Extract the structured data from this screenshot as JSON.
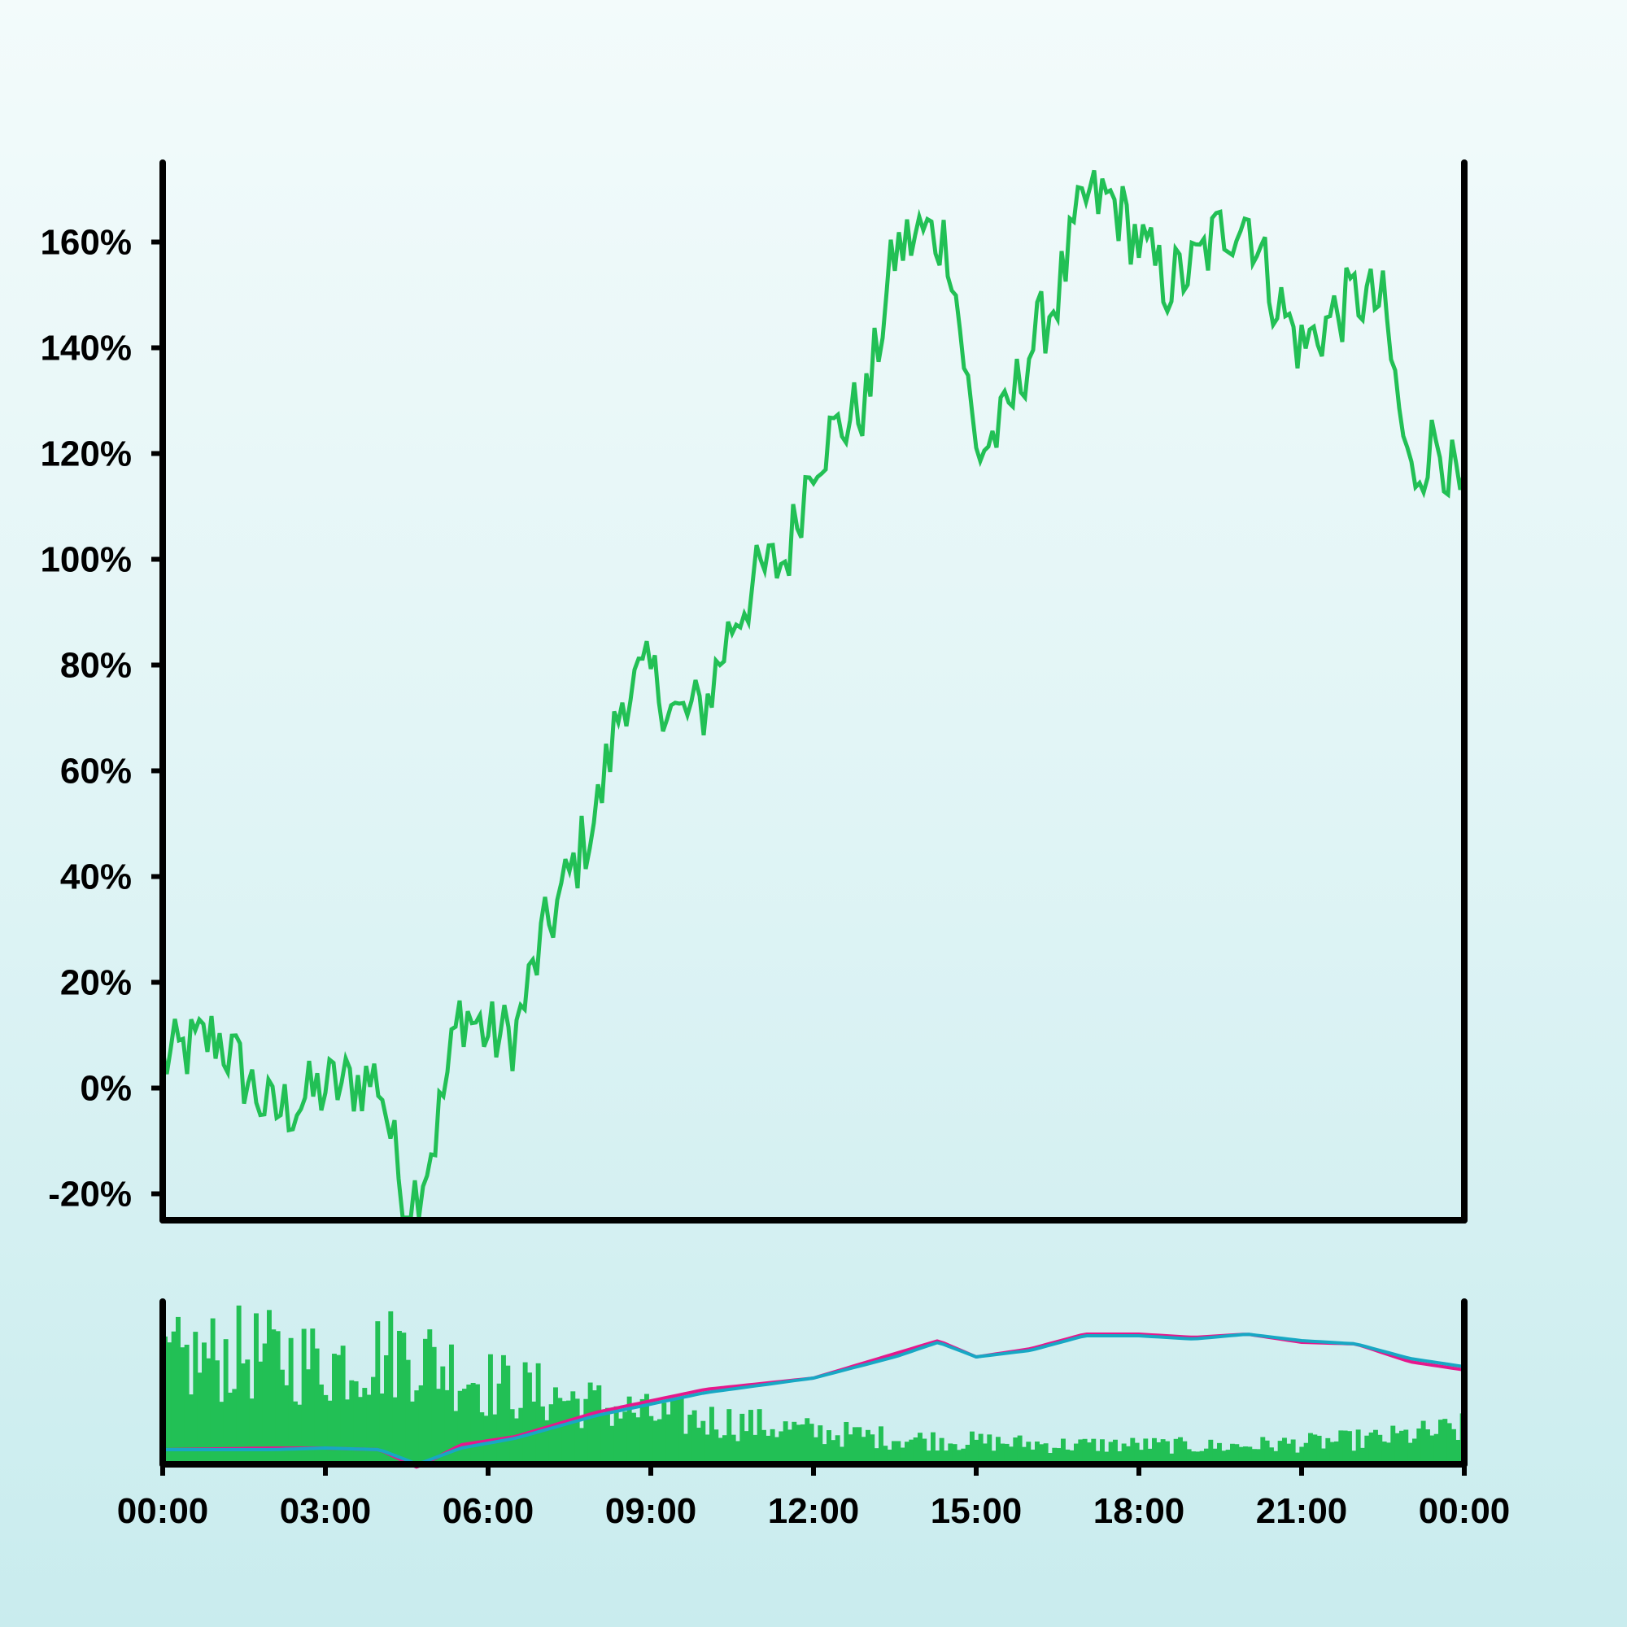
{
  "chart_data": [
    {
      "type": "line",
      "title": "",
      "xlabel": "",
      "ylabel": "",
      "ylim": [
        -25,
        175
      ],
      "y_tick_values": [
        -20,
        0,
        20,
        40,
        60,
        80,
        100,
        120,
        140,
        160
      ],
      "y_tick_labels": [
        "-20%",
        "0%",
        "20%",
        "40%",
        "60%",
        "80%",
        "100%",
        "120%",
        "140%",
        "160%"
      ],
      "grid": false,
      "legend": "none",
      "color": "#22c055",
      "series": [
        {
          "x_hours": [
            0,
            1,
            2,
            3,
            4,
            4.5,
            5,
            5.5,
            6,
            6.5,
            7,
            7.5,
            8,
            8.5,
            9,
            9.5,
            10,
            10.5,
            11,
            11.5,
            12,
            12.5,
            13,
            13.5,
            14,
            14.5,
            15,
            15.5,
            16,
            16.5,
            17,
            17.5,
            18,
            18.5,
            19,
            19.5,
            20,
            20.5,
            21,
            21.5,
            22,
            22.5,
            23,
            23.5,
            24
          ],
          "values": [
            5,
            10,
            -5,
            0,
            2,
            -24,
            -10,
            15,
            10,
            10,
            28,
            40,
            52,
            75,
            78,
            70,
            72,
            88,
            97,
            100,
            120,
            125,
            130,
            158,
            162,
            160,
            120,
            125,
            140,
            150,
            168,
            168,
            160,
            152,
            155,
            162,
            165,
            150,
            140,
            145,
            150,
            148,
            115,
            123,
            110
          ]
        }
      ]
    },
    {
      "type": "bar",
      "title": "",
      "xlabel": "",
      "ylabel": "",
      "x_tick_labels": [
        "00:00",
        "03:00",
        "06:00",
        "09:00",
        "12:00",
        "15:00",
        "18:00",
        "21:00",
        "00:00"
      ],
      "grid": false,
      "legend": "none",
      "bar_color": "#22c055",
      "bars_x_hours": [
        0,
        1.5,
        3,
        4.5,
        6,
        7.5,
        9,
        10.5,
        12,
        13.5,
        15,
        16.5,
        18,
        19.5,
        21,
        22.5,
        24
      ],
      "bars_level": [
        0.62,
        0.68,
        0.62,
        0.7,
        0.5,
        0.4,
        0.3,
        0.26,
        0.2,
        0.16,
        0.14,
        0.12,
        0.12,
        0.11,
        0.13,
        0.16,
        0.22
      ],
      "series": [
        {
          "color": "#e6178c",
          "x_hours": [
            0,
            2,
            3,
            4,
            4.7,
            5.5,
            6.5,
            8,
            10,
            12,
            13.5,
            14.3,
            15,
            16,
            17,
            18,
            19,
            20,
            21,
            22,
            23,
            24
          ],
          "values": [
            0.09,
            0.1,
            0.1,
            0.09,
            -0.02,
            0.12,
            0.17,
            0.32,
            0.46,
            0.53,
            0.68,
            0.76,
            0.66,
            0.71,
            0.8,
            0.8,
            0.78,
            0.8,
            0.75,
            0.74,
            0.63,
            0.58
          ]
        },
        {
          "color": "#17a8c4",
          "x_hours": [
            0,
            2,
            3,
            4,
            4.7,
            5.5,
            6.5,
            8,
            10,
            12,
            13.5,
            14.3,
            15,
            16,
            17,
            18,
            19,
            20,
            21,
            22,
            23,
            24
          ],
          "values": [
            0.09,
            0.09,
            0.1,
            0.09,
            0.0,
            0.1,
            0.16,
            0.3,
            0.44,
            0.53,
            0.66,
            0.75,
            0.66,
            0.7,
            0.79,
            0.79,
            0.77,
            0.8,
            0.76,
            0.74,
            0.65,
            0.6
          ]
        }
      ]
    }
  ]
}
